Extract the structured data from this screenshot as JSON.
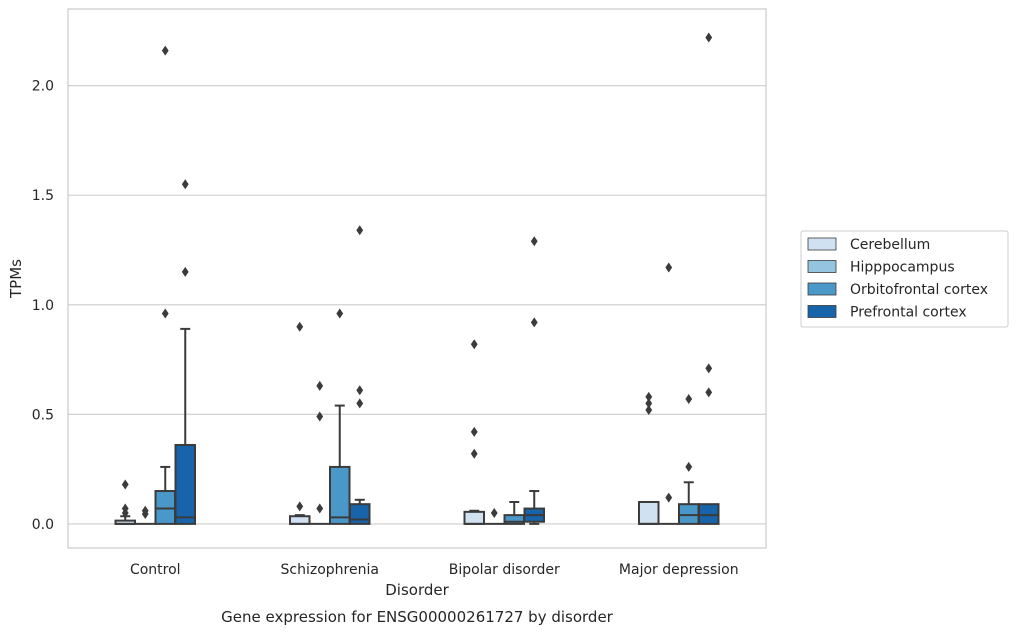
{
  "chart_data": {
    "type": "box",
    "title": "",
    "caption": "Gene expression for ENSG00000261727 by disorder",
    "xlabel": "Disorder",
    "ylabel": "TPMs",
    "ylim": [
      -0.11,
      2.35
    ],
    "yticks": [
      "0.0",
      "0.5",
      "1.0",
      "1.5",
      "2.0"
    ],
    "ytick_values": [
      0,
      0.5,
      1.0,
      1.5,
      2.0
    ],
    "grid": "horizontal",
    "legend_position": "right",
    "categories": [
      "Control",
      "Schizophrenia",
      "Bipolar disorder",
      "Major depression"
    ],
    "series": [
      {
        "name": "Cerebellum",
        "color": "#d0e1f2",
        "boxes": [
          {
            "q1": 0.0,
            "median": 0.0,
            "q3": 0.015,
            "whisker_low": 0.0,
            "whisker_high": 0.035,
            "outliers": [
              0.05,
              0.07,
              0.18
            ]
          },
          {
            "q1": 0.0,
            "median": 0.0,
            "q3": 0.035,
            "whisker_low": 0.0,
            "whisker_high": 0.04,
            "outliers": [
              0.08,
              0.9
            ]
          },
          {
            "q1": 0.0,
            "median": 0.0,
            "q3": 0.055,
            "whisker_low": 0.0,
            "whisker_high": 0.06,
            "outliers": [
              0.32,
              0.42,
              0.82
            ]
          },
          {
            "q1": 0.0,
            "median": 0.0,
            "q3": 0.1,
            "whisker_low": 0.0,
            "whisker_high": 0.1,
            "outliers": [
              0.52,
              0.55,
              0.58
            ]
          }
        ]
      },
      {
        "name": "Hipppocampus",
        "color": "#94c4df",
        "boxes": [
          {
            "q1": 0.0,
            "median": 0.0,
            "q3": 0.0,
            "whisker_low": 0.0,
            "whisker_high": 0.0,
            "outliers": [
              0.045,
              0.06
            ]
          },
          {
            "q1": 0.0,
            "median": 0.0,
            "q3": 0.0,
            "whisker_low": 0.0,
            "whisker_high": 0.0,
            "outliers": [
              0.07,
              0.49,
              0.63
            ]
          },
          {
            "q1": 0.0,
            "median": 0.0,
            "q3": 0.0,
            "whisker_low": 0.0,
            "whisker_high": 0.0,
            "outliers": [
              0.05
            ]
          },
          {
            "q1": 0.0,
            "median": 0.0,
            "q3": 0.0,
            "whisker_low": 0.0,
            "whisker_high": 0.0,
            "outliers": [
              0.12,
              1.17
            ]
          }
        ]
      },
      {
        "name": "Orbitofrontal cortex",
        "color": "#4a98c9",
        "boxes": [
          {
            "q1": 0.0,
            "median": 0.07,
            "q3": 0.15,
            "whisker_low": 0.0,
            "whisker_high": 0.26,
            "outliers": [
              0.96,
              2.16
            ]
          },
          {
            "q1": 0.0,
            "median": 0.03,
            "q3": 0.26,
            "whisker_low": 0.0,
            "whisker_high": 0.54,
            "outliers": [
              0.96
            ]
          },
          {
            "q1": 0.0,
            "median": 0.01,
            "q3": 0.04,
            "whisker_low": 0.0,
            "whisker_high": 0.1,
            "outliers": []
          },
          {
            "q1": 0.0,
            "median": 0.04,
            "q3": 0.09,
            "whisker_low": 0.0,
            "whisker_high": 0.19,
            "outliers": [
              0.26,
              0.57
            ]
          }
        ]
      },
      {
        "name": "Prefrontal cortex",
        "color": "#1764ab",
        "boxes": [
          {
            "q1": 0.0,
            "median": 0.03,
            "q3": 0.36,
            "whisker_low": 0.0,
            "whisker_high": 0.89,
            "outliers": [
              1.15,
              1.55
            ]
          },
          {
            "q1": 0.0,
            "median": 0.02,
            "q3": 0.09,
            "whisker_low": 0.0,
            "whisker_high": 0.11,
            "outliers": [
              0.55,
              0.61,
              1.34
            ]
          },
          {
            "q1": 0.01,
            "median": 0.04,
            "q3": 0.07,
            "whisker_low": 0.0,
            "whisker_high": 0.15,
            "outliers": [
              0.92,
              1.29
            ]
          },
          {
            "q1": 0.0,
            "median": 0.04,
            "q3": 0.09,
            "whisker_low": 0.0,
            "whisker_high": 0.09,
            "outliers": [
              0.6,
              0.71,
              2.22
            ]
          }
        ]
      }
    ]
  }
}
